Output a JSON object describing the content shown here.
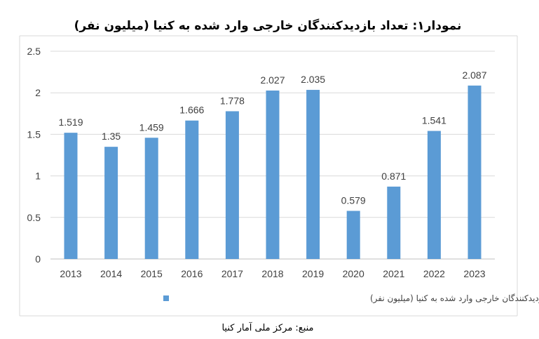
{
  "chart_data": {
    "type": "bar",
    "title": "نمودار۱: تعداد بازدیدکنندگان خارجی وارد شده به کنیا (میلیون نفر)",
    "categories": [
      "2013",
      "2014",
      "2015",
      "2016",
      "2017",
      "2018",
      "2019",
      "2020",
      "2021",
      "2022",
      "2023"
    ],
    "series": [
      {
        "name": "تعداد بازدیدکنندگان خارجی وارد شده به  کنیا (میلیون نفر)",
        "values": [
          1.519,
          1.35,
          1.459,
          1.666,
          1.778,
          2.027,
          2.035,
          0.579,
          0.871,
          1.541,
          2.087
        ],
        "labels": [
          "1.519",
          "1.35",
          "1.459",
          "1.666",
          "1.778",
          "2.027",
          "2.035",
          "0.579",
          "0.871",
          "1.541",
          "2.087"
        ],
        "color": "#5b9bd5"
      }
    ],
    "yticks": [
      "0",
      "0.5",
      "1",
      "1.5",
      "2",
      "2.5"
    ],
    "ylim": [
      0,
      2.5
    ],
    "xlabel": "",
    "ylabel": "",
    "grid": true,
    "legend_position": "bottom",
    "source": "منبع: مرکز ملی آمار کنیا"
  }
}
